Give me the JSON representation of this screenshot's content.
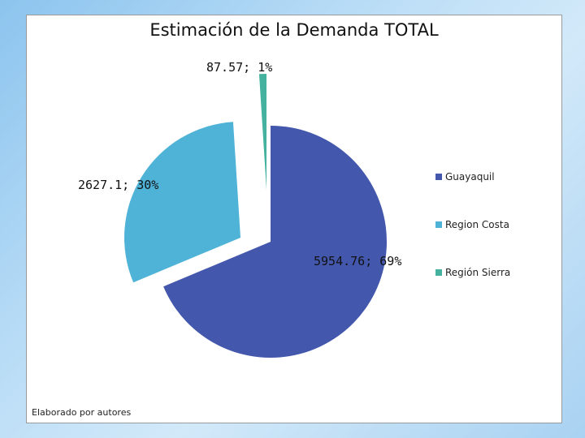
{
  "chart_data": {
    "type": "pie",
    "title": "Estimación de la Demanda TOTAL",
    "categories": [
      "Guayaquil",
      "Region Costa",
      "Región Sierra"
    ],
    "values": [
      5954.76,
      2627.1,
      87.57
    ],
    "percent_labels": [
      "69%",
      "30%",
      "1%"
    ],
    "data_labels": [
      "5954.76; 69%",
      "2627.1; 30%",
      "87.57; 1%"
    ],
    "colors": [
      "#4357ad",
      "#4fb3d8",
      "#45b2a0"
    ],
    "exploded": true,
    "legend_position": "right"
  },
  "footnote": "Elaborado por autores"
}
